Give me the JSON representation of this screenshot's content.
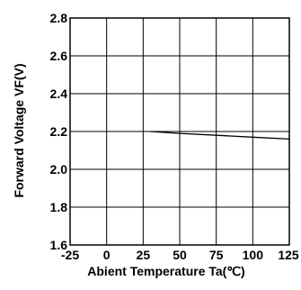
{
  "chart_data": {
    "type": "line",
    "title": "",
    "xlabel": "Abient Temperature Ta(℃)",
    "ylabel": "Forward Voltage VF(V)",
    "xlim": [
      -25,
      125
    ],
    "ylim": [
      1.6,
      2.8
    ],
    "x_ticks": [
      -25,
      0,
      25,
      50,
      75,
      100,
      125
    ],
    "x_tick_labels": [
      "-25",
      "0",
      "25",
      "50",
      "75",
      "100",
      "125"
    ],
    "y_ticks": [
      1.6,
      1.8,
      2.0,
      2.2,
      2.4,
      2.6,
      2.8
    ],
    "y_tick_labels": [
      "1.6",
      "1.8",
      "2.0",
      "2.2",
      "2.4",
      "2.6",
      "2.8"
    ],
    "grid": true,
    "series": [
      {
        "x": [
          30,
          50,
          75,
          100,
          125
        ],
        "y": [
          2.2,
          2.19,
          2.18,
          2.17,
          2.16
        ]
      }
    ],
    "colors": {
      "line": "#000000",
      "grid": "#000000",
      "background": "#ffffff"
    }
  }
}
